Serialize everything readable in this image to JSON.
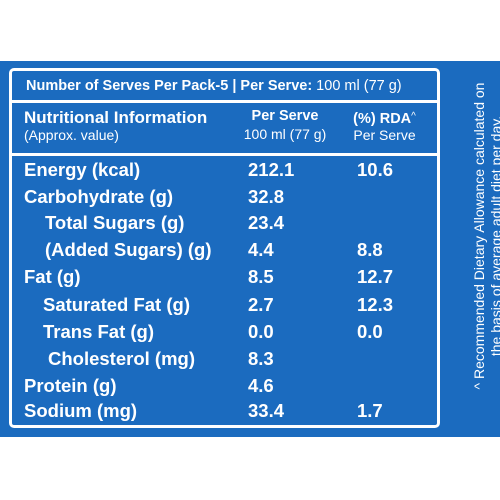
{
  "serves_line": {
    "bold": "Number of Serves Per Pack-5 | Per Serve:",
    "normal": " 100 ml (77 g)"
  },
  "header": {
    "title": "Nutritional Information",
    "subtitle": "(Approx. value)",
    "per_serve_label": "Per Serve",
    "per_serve_amount": "100 ml (77 g)",
    "rda_label": "(%) RDA",
    "rda_mark": "^",
    "rda_sub": "Per Serve"
  },
  "rows": [
    {
      "label": "Energy (kcal)",
      "per_serve": "212.1",
      "rda": "10.6"
    },
    {
      "label": "Carbohydrate (g)",
      "per_serve": "32.8",
      "rda": ""
    },
    {
      "label": "Total Sugars (g)",
      "per_serve": "23.4",
      "rda": ""
    },
    {
      "label": "(Added Sugars) (g)",
      "per_serve": "4.4",
      "rda": "8.8"
    },
    {
      "label": "Fat (g)",
      "per_serve": "8.5",
      "rda": "12.7"
    },
    {
      "label": "Saturated Fat (g)",
      "per_serve": "2.7",
      "rda": "12.3"
    },
    {
      "label": "Trans Fat (g)",
      "per_serve": "0.0",
      "rda": "0.0"
    },
    {
      "label": "Cholesterol (mg)",
      "per_serve": "8.3",
      "rda": ""
    },
    {
      "label": "Protein (g)",
      "per_serve": "4.6",
      "rda": ""
    },
    {
      "label": "Sodium (mg)",
      "per_serve": "33.4",
      "rda": "1.7"
    }
  ],
  "footnote": {
    "line1": "^ Recommended Dietary Allowance calculated on",
    "line2": "the basis of average adult diet per day."
  },
  "colors": {
    "panel": "#1b6bbf",
    "text": "#ffffff",
    "page": "#ffffff"
  }
}
